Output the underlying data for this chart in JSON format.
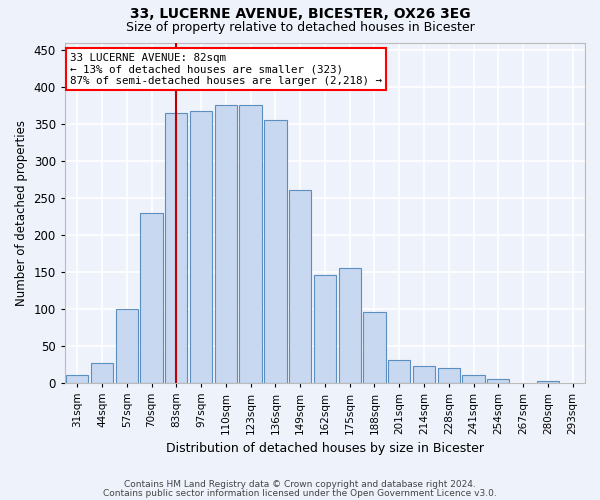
{
  "title1": "33, LUCERNE AVENUE, BICESTER, OX26 3EG",
  "title2": "Size of property relative to detached houses in Bicester",
  "xlabel": "Distribution of detached houses by size in Bicester",
  "ylabel": "Number of detached properties",
  "categories": [
    "31sqm",
    "44sqm",
    "57sqm",
    "70sqm",
    "83sqm",
    "97sqm",
    "110sqm",
    "123sqm",
    "136sqm",
    "149sqm",
    "162sqm",
    "175sqm",
    "188sqm",
    "201sqm",
    "214sqm",
    "228sqm",
    "241sqm",
    "254sqm",
    "267sqm",
    "280sqm",
    "293sqm"
  ],
  "values": [
    10,
    26,
    100,
    230,
    365,
    368,
    375,
    375,
    355,
    260,
    145,
    155,
    95,
    31,
    22,
    20,
    10,
    5,
    0,
    2,
    0
  ],
  "bar_color": "#c8d8f0",
  "bar_edge_color": "#5a8fc0",
  "annotation_text": "33 LUCERNE AVENUE: 82sqm\n← 13% of detached houses are smaller (323)\n87% of semi-detached houses are larger (2,218) →",
  "annotation_box_color": "white",
  "annotation_box_edge_color": "red",
  "vline_color": "#c00000",
  "ylim": [
    0,
    460
  ],
  "yticks": [
    0,
    50,
    100,
    150,
    200,
    250,
    300,
    350,
    400,
    450
  ],
  "footer1": "Contains HM Land Registry data © Crown copyright and database right 2024.",
  "footer2": "Contains public sector information licensed under the Open Government Licence v3.0.",
  "bg_color": "#eef2fb",
  "grid_color": "white"
}
